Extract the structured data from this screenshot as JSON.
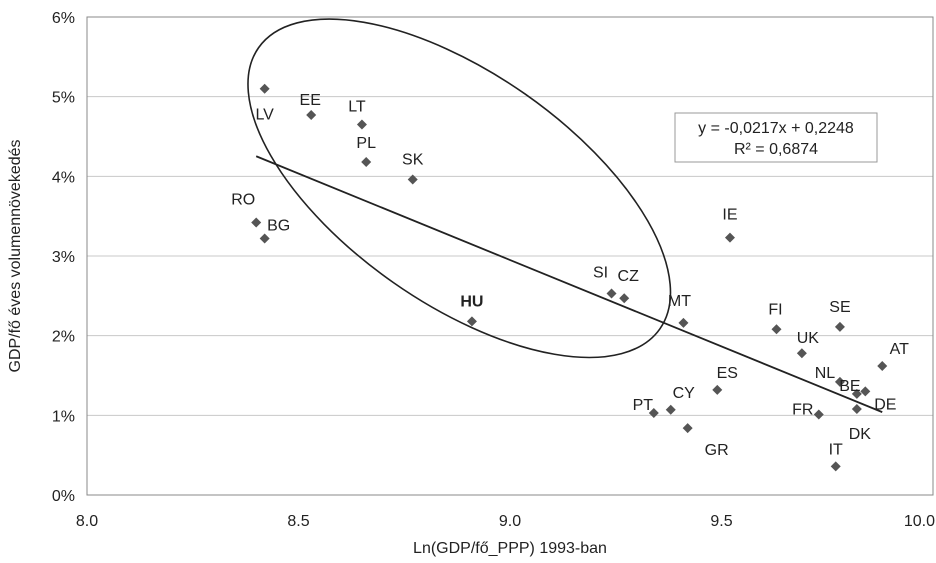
{
  "chart_data": {
    "type": "scatter",
    "title": "",
    "xlabel": "Ln(GDP/fő_PPP) 1993-ban",
    "ylabel": "GDP/fő éves volumennövekedés",
    "xlim": [
      8.0,
      10.0
    ],
    "ylim": [
      0,
      0.06
    ],
    "x_ticks": [
      8.0,
      8.5,
      9.0,
      9.5,
      10.0
    ],
    "x_tick_labels": [
      "8.0",
      "8.5",
      "9.0",
      "9.5",
      "10.0"
    ],
    "y_ticks": [
      0,
      0.01,
      0.02,
      0.03,
      0.04,
      0.05,
      0.06
    ],
    "y_tick_labels": [
      "0%",
      "1%",
      "2%",
      "3%",
      "4%",
      "5%",
      "6%"
    ],
    "grid": "horizontal",
    "marker": "diamond",
    "colors": {
      "marker": "#555555",
      "grid": "#c8c8c8",
      "line": "#222222"
    },
    "points": [
      {
        "label": "LV",
        "x": 8.42,
        "y": 0.051
      },
      {
        "label": "EE",
        "x": 8.53,
        "y": 0.0477
      },
      {
        "label": "LT",
        "x": 8.65,
        "y": 0.0465
      },
      {
        "label": "PL",
        "x": 8.66,
        "y": 0.0418
      },
      {
        "label": "SK",
        "x": 8.77,
        "y": 0.0396
      },
      {
        "label": "RO",
        "x": 8.4,
        "y": 0.0342
      },
      {
        "label": "BG",
        "x": 8.42,
        "y": 0.0322
      },
      {
        "label": "HU",
        "x": 8.91,
        "y": 0.0218,
        "highlight": true
      },
      {
        "label": "SI",
        "x": 9.24,
        "y": 0.0253
      },
      {
        "label": "CZ",
        "x": 9.27,
        "y": 0.0247
      },
      {
        "label": "MT",
        "x": 9.41,
        "y": 0.0216
      },
      {
        "label": "IE",
        "x": 9.52,
        "y": 0.0323
      },
      {
        "label": "FI",
        "x": 9.63,
        "y": 0.0208
      },
      {
        "label": "SE",
        "x": 9.78,
        "y": 0.0211
      },
      {
        "label": "UK",
        "x": 9.69,
        "y": 0.0178
      },
      {
        "label": "AT",
        "x": 9.88,
        "y": 0.0162
      },
      {
        "label": "NL",
        "x": 9.78,
        "y": 0.0142
      },
      {
        "label": "BE",
        "x": 9.82,
        "y": 0.0127
      },
      {
        "label": "DE",
        "x": 9.84,
        "y": 0.013
      },
      {
        "label": "ES",
        "x": 9.49,
        "y": 0.0132
      },
      {
        "label": "CY",
        "x": 9.38,
        "y": 0.0107
      },
      {
        "label": "PT",
        "x": 9.34,
        "y": 0.0103
      },
      {
        "label": "FR",
        "x": 9.73,
        "y": 0.0101
      },
      {
        "label": "DK",
        "x": 9.82,
        "y": 0.0108
      },
      {
        "label": "GR",
        "x": 9.42,
        "y": 0.0084
      },
      {
        "label": "IT",
        "x": 9.77,
        "y": 0.0036
      }
    ],
    "trendline": {
      "slope": -0.0217,
      "intercept": 0.2248,
      "x_range": [
        8.4,
        9.88
      ]
    },
    "equation": {
      "line1": "y = -0,0217x + 0,2248",
      "line2": "R² = 0,6874"
    },
    "ellipse": {
      "cx": 8.88,
      "cy": 0.0385,
      "rx": 0.31,
      "ry": 0.0235,
      "angle": 35
    }
  }
}
